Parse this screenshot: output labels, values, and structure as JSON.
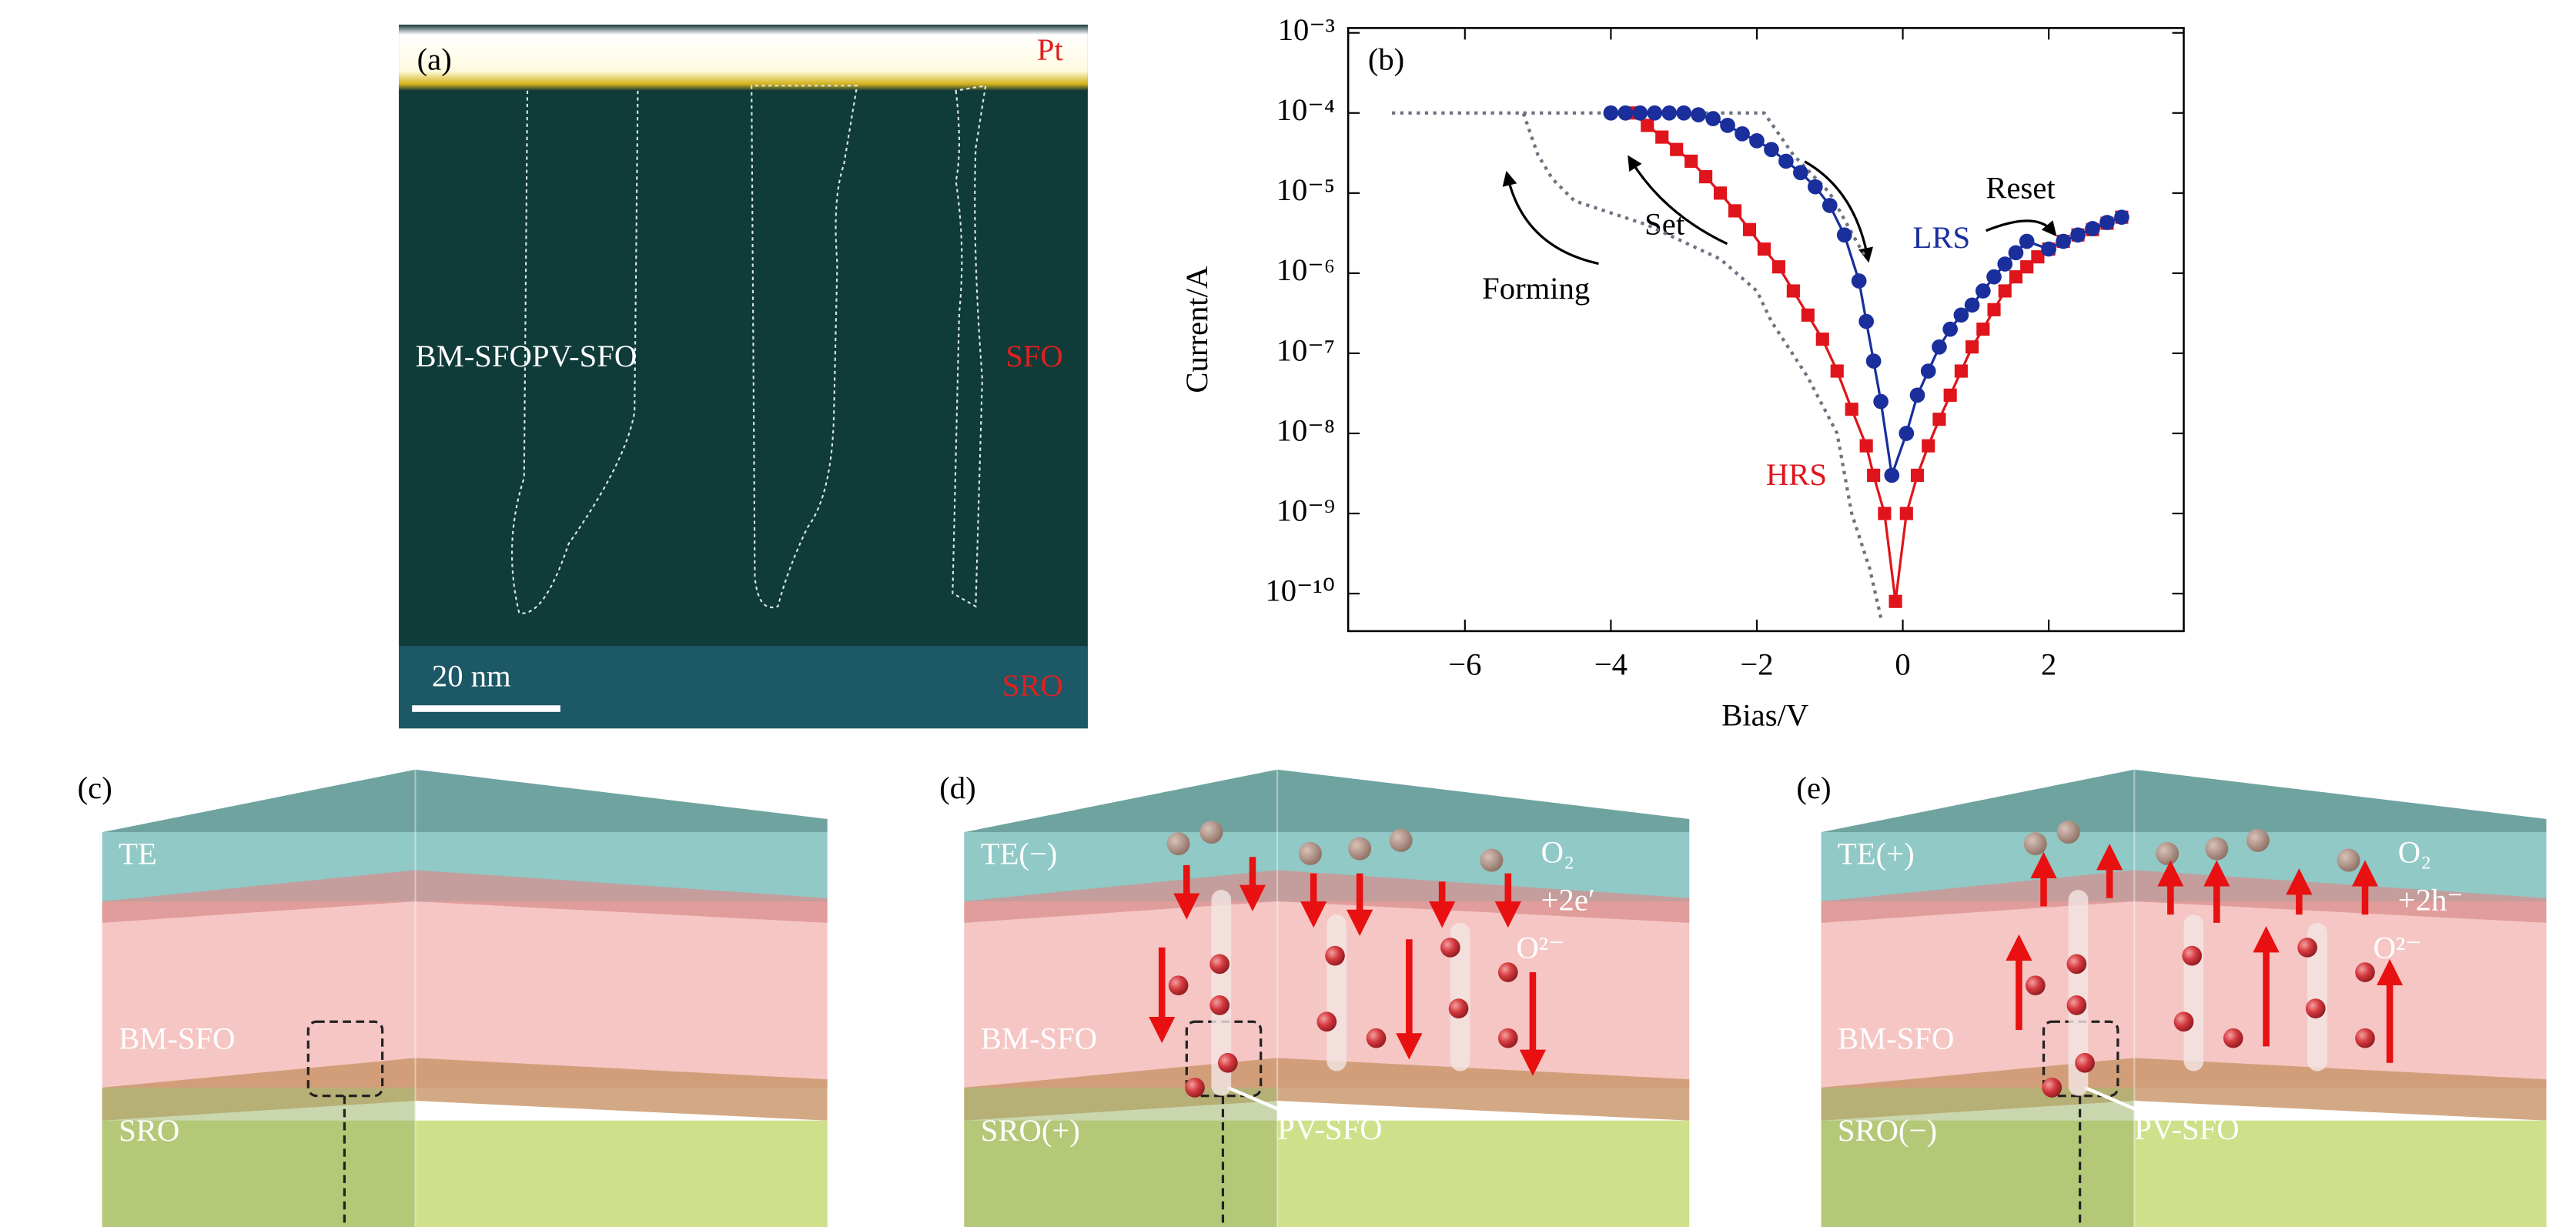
{
  "panel_a": {
    "label": "(a)",
    "top_layer": "Pt",
    "left_text": "BM-SFOPV-SFO",
    "right_text": "SFO",
    "bottom_layer": "SRO",
    "scale_bar": "20 nm"
  },
  "chart_data": {
    "type": "line",
    "panel_label": "(b)",
    "xlabel": "Bias/V",
    "ylabel": "Current/A",
    "yscale": "log",
    "xlim": [
      -7.6,
      3.85
    ],
    "ylim": [
      3.4e-11,
      0.00115
    ],
    "xticks": [
      {
        "value": -6,
        "label": "−6"
      },
      {
        "value": -4,
        "label": "−4"
      },
      {
        "value": -2,
        "label": "−2"
      },
      0,
      2
    ],
    "yticks": [
      {
        "value": 1e-10,
        "label": "10⁻¹⁰"
      },
      {
        "value": 1e-09,
        "label": "10⁻⁹"
      },
      {
        "value": 1e-08,
        "label": "10⁻⁸"
      },
      {
        "value": 1e-07,
        "label": "10⁻⁷"
      },
      {
        "value": 1e-06,
        "label": "10⁻⁶"
      },
      {
        "value": 1e-05,
        "label": "10⁻⁵"
      },
      {
        "value": 0.0001,
        "label": "10⁻⁴"
      },
      {
        "value": 0.001,
        "label": "10⁻³"
      }
    ],
    "annotations": [
      "Set",
      "Reset"
    ],
    "series": [
      {
        "name": "Forming",
        "color": "#6d7380",
        "linestyle": "dotted",
        "marker": "none",
        "x": [
          -7,
          -5.2,
          -5,
          -4.8,
          -4.5,
          -3.5,
          -2.5,
          -2,
          -1.8,
          -1.3,
          -0.9,
          -0.7,
          -0.45,
          -0.3
        ],
        "values": [
          0.0001,
          0.0001,
          3e-05,
          1.5e-05,
          8e-06,
          4e-06,
          1.5e-06,
          6e-07,
          2.5e-07,
          5e-08,
          1e-08,
          1e-09,
          2e-10,
          5e-11
        ]
      },
      {
        "color": "#6d7380",
        "linestyle": "dotted",
        "marker": "none",
        "x": [
          -5.2,
          -1.9,
          -1.5,
          -1,
          -0.5
        ],
        "values": [
          0.0001,
          0.0001,
          3e-05,
          1e-05,
          1.5e-06
        ]
      },
      {
        "name": "HRS",
        "color": "#e0141b",
        "linestyle": "solid",
        "marker": "square",
        "x": [
          -3.7,
          -3.5,
          -3.3,
          -3.1,
          -2.9,
          -2.7,
          -2.5,
          -2.3,
          -2.1,
          -1.9,
          -1.7,
          -1.5,
          -1.3,
          -1.1,
          -0.9,
          -0.7,
          -0.5,
          -0.4,
          -0.25,
          -0.1,
          0.05,
          0.2,
          0.35,
          0.5,
          0.65,
          0.8,
          0.95,
          1.1,
          1.25,
          1.4,
          1.55,
          1.7,
          1.85,
          2,
          2.2,
          2.4,
          2.6,
          2.8,
          3
        ],
        "values": [
          0.0001,
          7e-05,
          5e-05,
          3.5e-05,
          2.5e-05,
          1.6e-05,
          1e-05,
          6e-06,
          3.5e-06,
          2e-06,
          1.2e-06,
          6e-07,
          3e-07,
          1.5e-07,
          6e-08,
          2e-08,
          7e-09,
          3e-09,
          1e-09,
          8e-11,
          1e-09,
          3e-09,
          7e-09,
          1.5e-08,
          3e-08,
          6e-08,
          1.2e-07,
          2e-07,
          3.5e-07,
          6e-07,
          9e-07,
          1.2e-06,
          1.6e-06,
          2e-06,
          2.5e-06,
          3e-06,
          3.5e-06,
          4.2e-06,
          5e-06
        ]
      },
      {
        "name": "LRS",
        "color": "#1a2f9c",
        "linestyle": "solid",
        "marker": "circle",
        "x": [
          -4,
          -3.8,
          -3.6,
          -3.4,
          -3.2,
          -3,
          -2.8,
          -2.6,
          -2.4,
          -2.2,
          -2,
          -1.8,
          -1.6,
          -1.4,
          -1.2,
          -1,
          -0.8,
          -0.6,
          -0.5,
          -0.4,
          -0.3,
          -0.15,
          0.05,
          0.2,
          0.35,
          0.5,
          0.65,
          0.8,
          0.95,
          1.1,
          1.25,
          1.4,
          1.55,
          1.7,
          2,
          2.2,
          2.4,
          2.6,
          2.8,
          3
        ],
        "values": [
          0.0001,
          0.0001,
          0.0001,
          0.0001,
          0.0001,
          0.0001,
          9.5e-05,
          8.5e-05,
          7e-05,
          5.5e-05,
          4.5e-05,
          3.5e-05,
          2.5e-05,
          1.8e-05,
          1.2e-05,
          7e-06,
          3e-06,
          8e-07,
          2.5e-07,
          8e-08,
          2.5e-08,
          3e-09,
          1e-08,
          3e-08,
          6e-08,
          1.2e-07,
          2e-07,
          3e-07,
          4e-07,
          6e-07,
          9e-07,
          1.3e-06,
          1.8e-06,
          2.5e-06,
          2e-06,
          2.5e-06,
          3e-06,
          3.6e-06,
          4.3e-06,
          5e-06
        ]
      }
    ]
  },
  "panel_c": {
    "label": "(c)",
    "top": "TE",
    "middle": "BM-SFO",
    "bottom": "SRO"
  },
  "panel_d": {
    "label": "(d)",
    "top": "TE(−)",
    "reaction_1": "O₂",
    "reaction_2": "+2e′",
    "ion": "O²⁻",
    "middle": "BM-SFO",
    "bottom": "SRO(+)",
    "filament": "PV-SFO"
  },
  "panel_e": {
    "label": "(e)",
    "top": "TE(+)",
    "reaction_1": "O₂",
    "reaction_2": "+2h⁻",
    "ion": "O²⁻",
    "middle": "BM-SFO",
    "bottom": "SRO(−)",
    "filament": "PV-SFO"
  }
}
